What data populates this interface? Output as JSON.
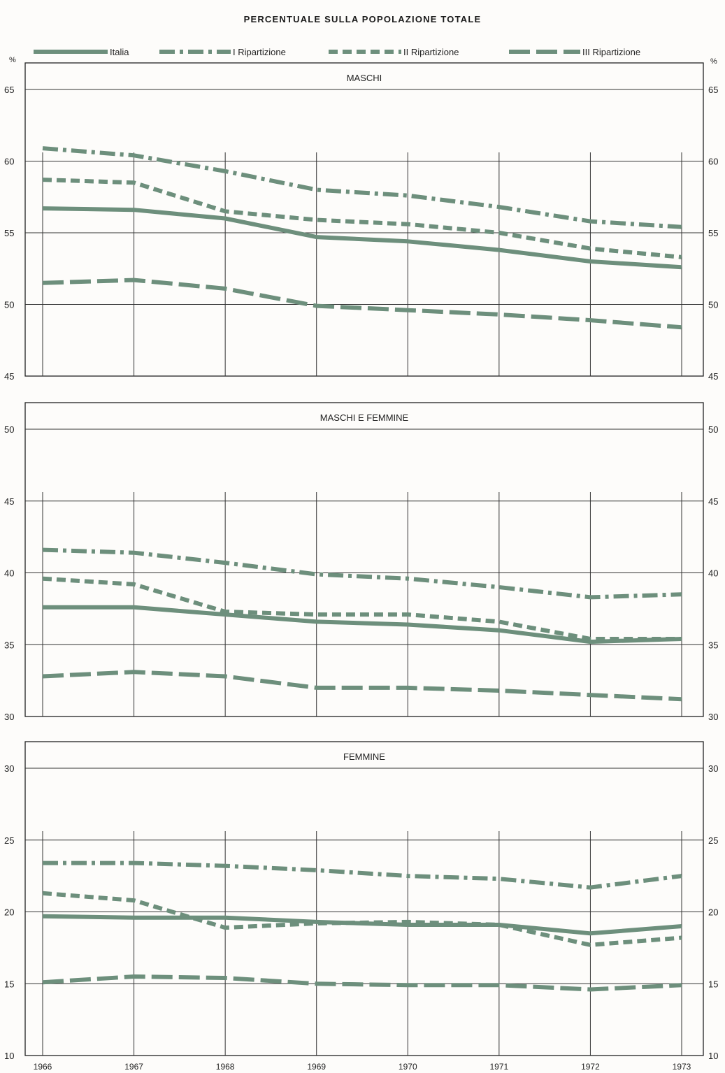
{
  "title": "PERCENTUALE SULLA POPOLAZIONE TOTALE",
  "colors": {
    "series": "#6d8f7c",
    "axis": "#222222",
    "grid": "#333333"
  },
  "legend": {
    "placement": "top",
    "items": [
      {
        "label": "Italia",
        "dash": "solid"
      },
      {
        "label": "I Ripartizione",
        "dash": "dash-dot"
      },
      {
        "label": "II Ripartizione",
        "dash": "short-dash"
      },
      {
        "label": "III Ripartizione",
        "dash": "long-dash"
      }
    ]
  },
  "chart_data": [
    {
      "type": "line",
      "title": "MASCHI",
      "ylabel_left": "%",
      "ylabel_right": "%",
      "ylim": [
        45,
        65
      ],
      "yticks": [
        "45",
        "50",
        "55",
        "60",
        "65"
      ],
      "x": [
        "1966",
        "1967",
        "1968",
        "1969",
        "1970",
        "1971",
        "1972",
        "1973"
      ],
      "show_x_labels": false,
      "grid": true,
      "series": [
        {
          "name": "Italia",
          "values": [
            56.7,
            56.6,
            56.0,
            54.7,
            54.4,
            53.8,
            53.0,
            52.6
          ]
        },
        {
          "name": "I Ripartizione",
          "values": [
            60.9,
            60.4,
            59.3,
            58.0,
            57.6,
            56.8,
            55.8,
            55.4
          ]
        },
        {
          "name": "II Ripartizione",
          "values": [
            58.7,
            58.5,
            56.5,
            55.9,
            55.6,
            55.0,
            53.9,
            53.3
          ]
        },
        {
          "name": "III Ripartizione",
          "values": [
            51.5,
            51.7,
            51.1,
            49.9,
            49.6,
            49.3,
            48.9,
            48.4
          ]
        }
      ]
    },
    {
      "type": "line",
      "title": "MASCHI E FEMMINE",
      "ylim": [
        30,
        50
      ],
      "yticks": [
        "30",
        "35",
        "40",
        "45",
        "50"
      ],
      "x": [
        "1966",
        "1967",
        "1968",
        "1969",
        "1970",
        "1971",
        "1972",
        "1973"
      ],
      "show_x_labels": false,
      "grid": true,
      "series": [
        {
          "name": "Italia",
          "values": [
            37.6,
            37.6,
            37.1,
            36.6,
            36.4,
            36.0,
            35.2,
            35.4
          ]
        },
        {
          "name": "I Ripartizione",
          "values": [
            41.6,
            41.4,
            40.7,
            39.9,
            39.6,
            39.0,
            38.3,
            38.5
          ]
        },
        {
          "name": "II Ripartizione",
          "values": [
            39.6,
            39.2,
            37.3,
            37.1,
            37.1,
            36.6,
            35.4,
            35.4
          ]
        },
        {
          "name": "III Ripartizione",
          "values": [
            32.8,
            33.1,
            32.8,
            32.0,
            32.0,
            31.8,
            31.5,
            31.2
          ]
        }
      ]
    },
    {
      "type": "line",
      "title": "FEMMINE",
      "ylim": [
        10,
        30
      ],
      "yticks": [
        "10",
        "15",
        "20",
        "25",
        "30"
      ],
      "x": [
        "1966",
        "1967",
        "1968",
        "1969",
        "1970",
        "1971",
        "1972",
        "1973"
      ],
      "show_x_labels": true,
      "grid": true,
      "series": [
        {
          "name": "Italia",
          "values": [
            19.7,
            19.6,
            19.6,
            19.3,
            19.1,
            19.1,
            18.5,
            19.0
          ]
        },
        {
          "name": "I Ripartizione",
          "values": [
            23.4,
            23.4,
            23.2,
            22.9,
            22.5,
            22.3,
            21.7,
            22.5
          ]
        },
        {
          "name": "II Ripartizione",
          "values": [
            21.3,
            20.8,
            18.9,
            19.2,
            19.3,
            19.1,
            17.7,
            18.2
          ]
        },
        {
          "name": "III Ripartizione",
          "values": [
            15.1,
            15.5,
            15.4,
            15.0,
            14.9,
            14.9,
            14.6,
            14.9
          ]
        }
      ]
    }
  ]
}
